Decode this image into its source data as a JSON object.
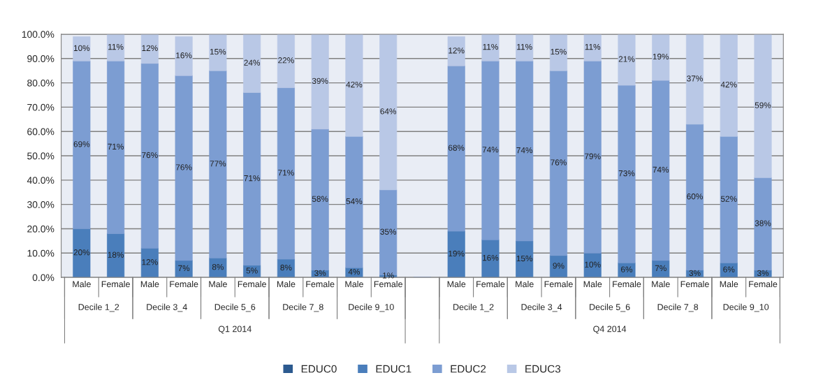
{
  "chart_data": {
    "type": "bar",
    "stacked": true,
    "categories": [
      "Male",
      "Female",
      "Male",
      "Female",
      "Male",
      "Female",
      "Male",
      "Female",
      "Male",
      "Female",
      null,
      "Male",
      "Female",
      "Male",
      "Female",
      "Male",
      "Female",
      "Male",
      "Female",
      "Male",
      "Female"
    ],
    "annotations": [
      "Decile 1_2",
      "Decile 3_4",
      "Decile 5_6",
      "Decile 7_8",
      "Decile 9_10",
      "Decile 1_2",
      "Decile 3_4",
      "Decile 5_6",
      "Decile 7_8",
      "Decile 9_10",
      "Q1 2014",
      "Q4 2014"
    ],
    "series": [
      {
        "name": "EDUC0",
        "color": "#2c5a8f",
        "values": [
          0,
          0,
          0,
          0,
          0,
          0,
          0,
          0,
          0,
          0,
          null,
          0,
          0,
          0,
          0,
          0,
          0,
          0,
          0,
          0,
          0
        ]
      },
      {
        "name": "EDUC1",
        "color": "#4a7ebb",
        "values": [
          20,
          18,
          12,
          7,
          8,
          5,
          7.5,
          3,
          4,
          1,
          null,
          19,
          15.5,
          15,
          9,
          10,
          6,
          7,
          3,
          6,
          3
        ],
        "value_labels": [
          "20%",
          "18%",
          "12%",
          "7%",
          "8%",
          "5%",
          "8%",
          "3%",
          "4%",
          "1%",
          null,
          "19%",
          "16%",
          "15%",
          "9%",
          "10%",
          "6%",
          "7%",
          "3%",
          "6%",
          "3%"
        ]
      },
      {
        "name": "EDUC2",
        "color": "#7c9dd2",
        "values": [
          69,
          71,
          76,
          76,
          77,
          71,
          70.5,
          58,
          54,
          35,
          null,
          68,
          73.5,
          74,
          76,
          79,
          73,
          74,
          60,
          52,
          38
        ],
        "value_labels": [
          "69%",
          "71%",
          "76%",
          "76%",
          "77%",
          "71%",
          "71%",
          "58%",
          "54%",
          "35%",
          null,
          "68%",
          "74%",
          "74%",
          "76%",
          "79%",
          "73%",
          "74%",
          "60%",
          "52%",
          "38%"
        ]
      },
      {
        "name": "EDUC3",
        "color": "#b9c8e6",
        "values": [
          10,
          11,
          12,
          16,
          15,
          24,
          22,
          39,
          42,
          64,
          null,
          12,
          11,
          11,
          15,
          11,
          21,
          19,
          37,
          42,
          59
        ],
        "value_labels": [
          "10%",
          "11%",
          "12%",
          "16%",
          "15%",
          "24%",
          "22%",
          "39%",
          "42%",
          "64%",
          null,
          "12%",
          "11%",
          "11%",
          "15%",
          "11%",
          "21%",
          "19%",
          "37%",
          "42%",
          "59%"
        ]
      }
    ],
    "ylim": [
      0,
      100
    ],
    "yticks": [
      {
        "value": 0,
        "label": "0.0%"
      },
      {
        "value": 10,
        "label": "10.0%"
      },
      {
        "value": 20,
        "label": "20.0%"
      },
      {
        "value": 30,
        "label": "30.0%"
      },
      {
        "value": 40,
        "label": "40.0%"
      },
      {
        "value": 50,
        "label": "50.0%"
      },
      {
        "value": 60,
        "label": "60.0%"
      },
      {
        "value": 70,
        "label": "70.0%"
      },
      {
        "value": 80,
        "label": "80.0%"
      },
      {
        "value": 90,
        "label": "90.0%"
      },
      {
        "value": 100,
        "label": "100.0%"
      }
    ],
    "grid": "y",
    "legend": "bottom"
  }
}
